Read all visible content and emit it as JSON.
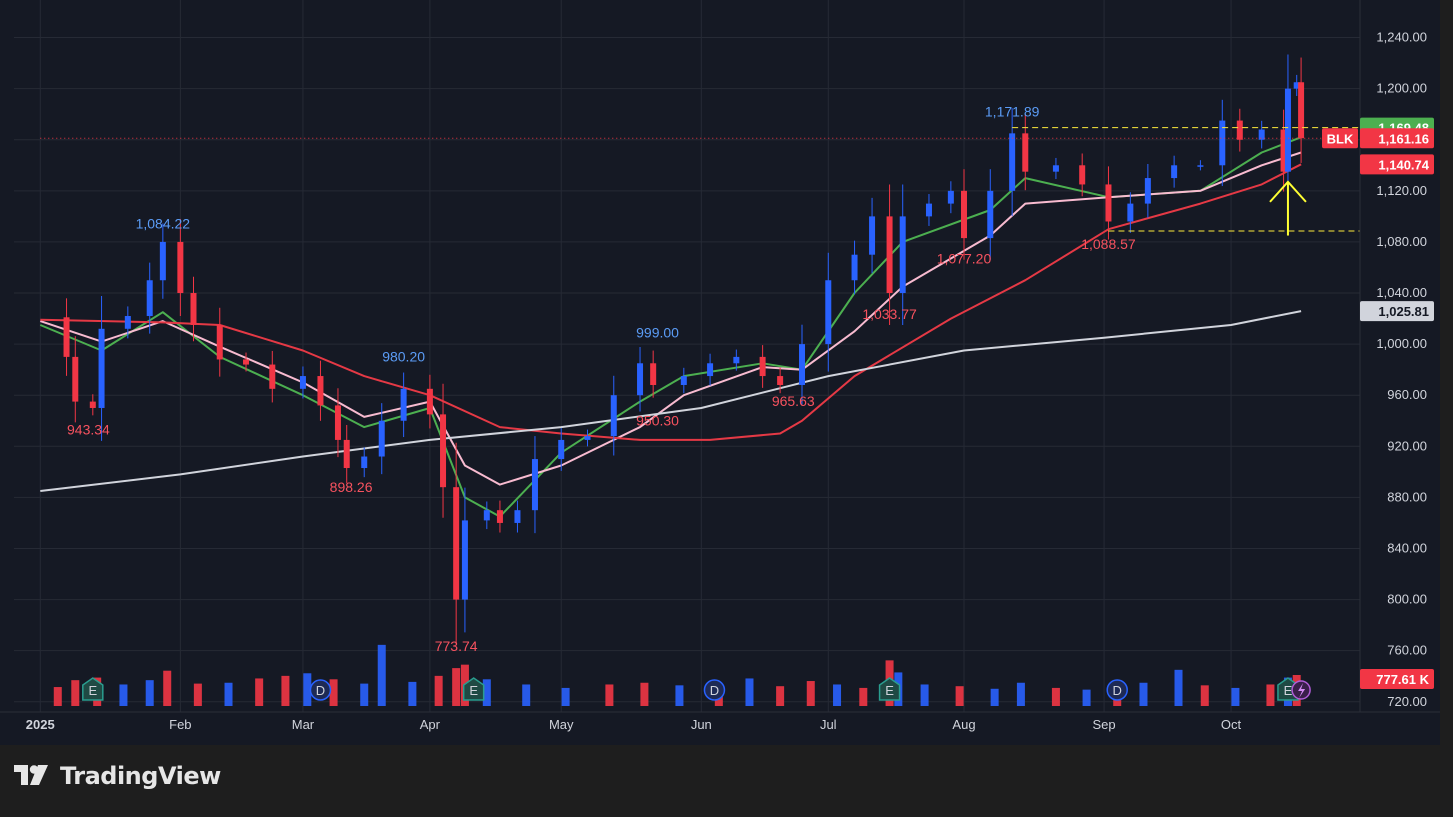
{
  "brand": {
    "name": "TradingView"
  },
  "colors": {
    "background": "#151924",
    "grid": "#262a35",
    "up": "#2962ff",
    "down": "#f23645",
    "ema_fast": "#4caf50",
    "ema_mid": "#f8bbd0",
    "ma_50": "#e53945",
    "ma_200": "#d1d4dc",
    "level_line": "#ffeb3b",
    "arrow": "#ffff33",
    "up_label": "#5b9cf6",
    "down_label": "#f7525f"
  },
  "chart_data": {
    "type": "candlestick",
    "symbol": "BLK",
    "x_labels": [
      {
        "label": "2025",
        "date": "2025-01-02"
      },
      {
        "label": "Feb",
        "date": "2025-02-03"
      },
      {
        "label": "Mar",
        "date": "2025-03-03"
      },
      {
        "label": "Apr",
        "date": "2025-04-01"
      },
      {
        "label": "May",
        "date": "2025-05-01"
      },
      {
        "label": "Jun",
        "date": "2025-06-02"
      },
      {
        "label": "Jul",
        "date": "2025-07-01"
      },
      {
        "label": "Aug",
        "date": "2025-08-01"
      },
      {
        "label": "Sep",
        "date": "2025-09-02"
      },
      {
        "label": "Oct",
        "date": "2025-10-01"
      }
    ],
    "y_ticks": [
      "720.00",
      "760.00",
      "800.00",
      "840.00",
      "880.00",
      "920.00",
      "960.00",
      "1,000.00",
      "1,040.00",
      "1,080.00",
      "1,120.00",
      "1,160.00",
      "1,200.00",
      "1,240.00"
    ],
    "y_range": [
      712,
      1260
    ],
    "grid": true,
    "price_points": [
      {
        "date": "2025-01-02",
        "close": 1021
      },
      {
        "date": "2025-01-08",
        "close": 990
      },
      {
        "date": "2025-01-10",
        "close": 955
      },
      {
        "date": "2025-01-14",
        "close": 950
      },
      {
        "date": "2025-01-16",
        "close": 1012
      },
      {
        "date": "2025-01-22",
        "close": 1022
      },
      {
        "date": "2025-01-27",
        "close": 1050
      },
      {
        "date": "2025-01-30",
        "close": 1080
      },
      {
        "date": "2025-02-03",
        "close": 1040
      },
      {
        "date": "2025-02-06",
        "close": 1015
      },
      {
        "date": "2025-02-12",
        "close": 988
      },
      {
        "date": "2025-02-18",
        "close": 984
      },
      {
        "date": "2025-02-24",
        "close": 965
      },
      {
        "date": "2025-03-03",
        "close": 975
      },
      {
        "date": "2025-03-07",
        "close": 952
      },
      {
        "date": "2025-03-11",
        "close": 925
      },
      {
        "date": "2025-03-13",
        "close": 903
      },
      {
        "date": "2025-03-17",
        "close": 912
      },
      {
        "date": "2025-03-21",
        "close": 940
      },
      {
        "date": "2025-03-26",
        "close": 965
      },
      {
        "date": "2025-04-01",
        "close": 945
      },
      {
        "date": "2025-04-04",
        "close": 888
      },
      {
        "date": "2025-04-07",
        "close": 800
      },
      {
        "date": "2025-04-09",
        "close": 862
      },
      {
        "date": "2025-04-14",
        "close": 870
      },
      {
        "date": "2025-04-17",
        "close": 860
      },
      {
        "date": "2025-04-21",
        "close": 870
      },
      {
        "date": "2025-04-25",
        "close": 910
      },
      {
        "date": "2025-05-01",
        "close": 925
      },
      {
        "date": "2025-05-07",
        "close": 928
      },
      {
        "date": "2025-05-13",
        "close": 960
      },
      {
        "date": "2025-05-19",
        "close": 985
      },
      {
        "date": "2025-05-22",
        "close": 968
      },
      {
        "date": "2025-05-29",
        "close": 975
      },
      {
        "date": "2025-06-04",
        "close": 985
      },
      {
        "date": "2025-06-10",
        "close": 990
      },
      {
        "date": "2025-06-16",
        "close": 975
      },
      {
        "date": "2025-06-20",
        "close": 968
      },
      {
        "date": "2025-06-25",
        "close": 1000
      },
      {
        "date": "2025-07-01",
        "close": 1050
      },
      {
        "date": "2025-07-07",
        "close": 1070
      },
      {
        "date": "2025-07-11",
        "close": 1100
      },
      {
        "date": "2025-07-15",
        "close": 1040
      },
      {
        "date": "2025-07-18",
        "close": 1100
      },
      {
        "date": "2025-07-24",
        "close": 1110
      },
      {
        "date": "2025-07-29",
        "close": 1120
      },
      {
        "date": "2025-08-01",
        "close": 1083
      },
      {
        "date": "2025-08-07",
        "close": 1120
      },
      {
        "date": "2025-08-12",
        "close": 1165
      },
      {
        "date": "2025-08-15",
        "close": 1135
      },
      {
        "date": "2025-08-22",
        "close": 1140
      },
      {
        "date": "2025-08-28",
        "close": 1125
      },
      {
        "date": "2025-09-03",
        "close": 1096
      },
      {
        "date": "2025-09-08",
        "close": 1110
      },
      {
        "date": "2025-09-12",
        "close": 1130
      },
      {
        "date": "2025-09-18",
        "close": 1140
      },
      {
        "date": "2025-09-24",
        "close": 1140
      },
      {
        "date": "2025-09-29",
        "close": 1175
      },
      {
        "date": "2025-10-03",
        "close": 1160
      },
      {
        "date": "2025-10-08",
        "close": 1168
      },
      {
        "date": "2025-10-13",
        "close": 1135
      },
      {
        "date": "2025-10-14",
        "close": 1200
      },
      {
        "date": "2025-10-16",
        "close": 1205
      },
      {
        "date": "2025-10-17",
        "close": 1161.16
      }
    ],
    "moving_averages": [
      {
        "id": "ema_fast",
        "color": "#4caf50",
        "points": [
          [
            "2025-01-02",
            1015
          ],
          [
            "2025-01-16",
            995
          ],
          [
            "2025-01-30",
            1025
          ],
          [
            "2025-02-12",
            990
          ],
          [
            "2025-03-03",
            960
          ],
          [
            "2025-03-17",
            935
          ],
          [
            "2025-04-01",
            950
          ],
          [
            "2025-04-09",
            880
          ],
          [
            "2025-04-17",
            865
          ],
          [
            "2025-05-01",
            915
          ],
          [
            "2025-05-19",
            955
          ],
          [
            "2025-05-29",
            975
          ],
          [
            "2025-06-16",
            985
          ],
          [
            "2025-06-25",
            980
          ],
          [
            "2025-07-07",
            1040
          ],
          [
            "2025-07-18",
            1080
          ],
          [
            "2025-08-07",
            1105
          ],
          [
            "2025-08-15",
            1130
          ],
          [
            "2025-09-03",
            1115
          ],
          [
            "2025-09-24",
            1120
          ],
          [
            "2025-10-08",
            1150
          ],
          [
            "2025-10-17",
            1162
          ]
        ]
      },
      {
        "id": "ema_mid",
        "color": "#f8bbd0",
        "points": [
          [
            "2025-01-02",
            1018
          ],
          [
            "2025-01-16",
            1002
          ],
          [
            "2025-01-30",
            1018
          ],
          [
            "2025-02-12",
            998
          ],
          [
            "2025-03-03",
            970
          ],
          [
            "2025-03-17",
            943
          ],
          [
            "2025-04-01",
            955
          ],
          [
            "2025-04-09",
            905
          ],
          [
            "2025-04-17",
            890
          ],
          [
            "2025-05-01",
            905
          ],
          [
            "2025-05-19",
            935
          ],
          [
            "2025-05-29",
            960
          ],
          [
            "2025-06-16",
            982
          ],
          [
            "2025-06-25",
            980
          ],
          [
            "2025-07-07",
            1010
          ],
          [
            "2025-07-18",
            1045
          ],
          [
            "2025-08-07",
            1085
          ],
          [
            "2025-08-15",
            1110
          ],
          [
            "2025-09-03",
            1115
          ],
          [
            "2025-09-24",
            1120
          ],
          [
            "2025-10-08",
            1140
          ],
          [
            "2025-10-17",
            1150
          ]
        ]
      },
      {
        "id": "ma_50",
        "color": "#e53945",
        "points": [
          [
            "2025-01-02",
            1019
          ],
          [
            "2025-01-30",
            1017
          ],
          [
            "2025-02-12",
            1015
          ],
          [
            "2025-03-03",
            995
          ],
          [
            "2025-03-17",
            975
          ],
          [
            "2025-04-01",
            960
          ],
          [
            "2025-04-17",
            935
          ],
          [
            "2025-05-01",
            930
          ],
          [
            "2025-05-19",
            925
          ],
          [
            "2025-06-04",
            925
          ],
          [
            "2025-06-20",
            930
          ],
          [
            "2025-06-25",
            940
          ],
          [
            "2025-07-07",
            975
          ],
          [
            "2025-07-29",
            1020
          ],
          [
            "2025-08-15",
            1050
          ],
          [
            "2025-09-03",
            1090
          ],
          [
            "2025-09-24",
            1110
          ],
          [
            "2025-10-08",
            1125
          ],
          [
            "2025-10-17",
            1140.74
          ]
        ]
      },
      {
        "id": "ma_200",
        "color": "#d1d4dc",
        "points": [
          [
            "2025-01-02",
            885
          ],
          [
            "2025-02-03",
            898
          ],
          [
            "2025-03-03",
            912
          ],
          [
            "2025-04-01",
            925
          ],
          [
            "2025-05-01",
            935
          ],
          [
            "2025-06-02",
            950
          ],
          [
            "2025-07-01",
            975
          ],
          [
            "2025-08-01",
            995
          ],
          [
            "2025-09-02",
            1005
          ],
          [
            "2025-10-01",
            1015
          ],
          [
            "2025-10-17",
            1025.81
          ]
        ]
      }
    ],
    "volume": {
      "range": [
        0,
        7200000
      ],
      "bars": [
        {
          "date": "2025-01-06",
          "value": 2200000,
          "dir": "down"
        },
        {
          "date": "2025-01-10",
          "value": 3000000,
          "dir": "down"
        },
        {
          "date": "2025-01-15",
          "value": 3300000,
          "dir": "down"
        },
        {
          "date": "2025-01-21",
          "value": 2500000,
          "dir": "up"
        },
        {
          "date": "2025-01-27",
          "value": 3000000,
          "dir": "up"
        },
        {
          "date": "2025-01-31",
          "value": 4100000,
          "dir": "down"
        },
        {
          "date": "2025-02-07",
          "value": 2600000,
          "dir": "down"
        },
        {
          "date": "2025-02-14",
          "value": 2700000,
          "dir": "up"
        },
        {
          "date": "2025-02-21",
          "value": 3200000,
          "dir": "down"
        },
        {
          "date": "2025-02-27",
          "value": 3500000,
          "dir": "down"
        },
        {
          "date": "2025-03-04",
          "value": 3800000,
          "dir": "up"
        },
        {
          "date": "2025-03-10",
          "value": 3100000,
          "dir": "down"
        },
        {
          "date": "2025-03-17",
          "value": 2600000,
          "dir": "up"
        },
        {
          "date": "2025-03-21",
          "value": 7100000,
          "dir": "up"
        },
        {
          "date": "2025-03-28",
          "value": 2800000,
          "dir": "up"
        },
        {
          "date": "2025-04-03",
          "value": 3500000,
          "dir": "down"
        },
        {
          "date": "2025-04-07",
          "value": 4400000,
          "dir": "down"
        },
        {
          "date": "2025-04-09",
          "value": 4800000,
          "dir": "down"
        },
        {
          "date": "2025-04-14",
          "value": 3100000,
          "dir": "up"
        },
        {
          "date": "2025-04-23",
          "value": 2500000,
          "dir": "up"
        },
        {
          "date": "2025-05-02",
          "value": 2100000,
          "dir": "up"
        },
        {
          "date": "2025-05-12",
          "value": 2500000,
          "dir": "down"
        },
        {
          "date": "2025-05-20",
          "value": 2700000,
          "dir": "down"
        },
        {
          "date": "2025-05-28",
          "value": 2400000,
          "dir": "up"
        },
        {
          "date": "2025-06-06",
          "value": 2600000,
          "dir": "down"
        },
        {
          "date": "2025-06-13",
          "value": 3200000,
          "dir": "up"
        },
        {
          "date": "2025-06-20",
          "value": 2300000,
          "dir": "down"
        },
        {
          "date": "2025-06-27",
          "value": 2900000,
          "dir": "down"
        },
        {
          "date": "2025-07-03",
          "value": 2500000,
          "dir": "up"
        },
        {
          "date": "2025-07-09",
          "value": 2100000,
          "dir": "down"
        },
        {
          "date": "2025-07-15",
          "value": 5300000,
          "dir": "down"
        },
        {
          "date": "2025-07-17",
          "value": 3900000,
          "dir": "up"
        },
        {
          "date": "2025-07-23",
          "value": 2500000,
          "dir": "up"
        },
        {
          "date": "2025-07-31",
          "value": 2300000,
          "dir": "down"
        },
        {
          "date": "2025-08-08",
          "value": 2000000,
          "dir": "up"
        },
        {
          "date": "2025-08-14",
          "value": 2700000,
          "dir": "up"
        },
        {
          "date": "2025-08-22",
          "value": 2100000,
          "dir": "down"
        },
        {
          "date": "2025-08-29",
          "value": 1900000,
          "dir": "up"
        },
        {
          "date": "2025-09-05",
          "value": 2300000,
          "dir": "down"
        },
        {
          "date": "2025-09-11",
          "value": 2700000,
          "dir": "up"
        },
        {
          "date": "2025-09-19",
          "value": 4200000,
          "dir": "up"
        },
        {
          "date": "2025-09-25",
          "value": 2400000,
          "dir": "down"
        },
        {
          "date": "2025-10-02",
          "value": 2100000,
          "dir": "up"
        },
        {
          "date": "2025-10-10",
          "value": 2500000,
          "dir": "down"
        },
        {
          "date": "2025-10-14",
          "value": 3300000,
          "dir": "up"
        },
        {
          "date": "2025-10-16",
          "value": 3600000,
          "dir": "down"
        }
      ],
      "current_label": "777.61 K"
    },
    "annotations": [
      {
        "text": "1,084.22",
        "date": "2025-01-30",
        "price": 1084.22,
        "type": "high"
      },
      {
        "text": "943.34",
        "date": "2025-01-13",
        "price": 943.34,
        "type": "low"
      },
      {
        "text": "898.26",
        "date": "2025-03-14",
        "price": 898.26,
        "type": "low"
      },
      {
        "text": "980.20",
        "date": "2025-03-26",
        "price": 980.2,
        "type": "high"
      },
      {
        "text": "773.74",
        "date": "2025-04-07",
        "price": 773.74,
        "type": "low"
      },
      {
        "text": "999.00",
        "date": "2025-05-23",
        "price": 999.0,
        "type": "high"
      },
      {
        "text": "950.30",
        "date": "2025-05-23",
        "price": 950.3,
        "type": "low"
      },
      {
        "text": "965.63",
        "date": "2025-06-23",
        "price": 965.63,
        "type": "low"
      },
      {
        "text": "1,033.77",
        "date": "2025-07-15",
        "price": 1033.77,
        "type": "low"
      },
      {
        "text": "1,077.20",
        "date": "2025-08-01",
        "price": 1077.2,
        "type": "low"
      },
      {
        "text": "1,171.89",
        "date": "2025-08-12",
        "price": 1171.89,
        "type": "high"
      },
      {
        "text": "1,088.57",
        "date": "2025-09-03",
        "price": 1088.57,
        "type": "low"
      }
    ],
    "horizontal_levels": [
      {
        "price": 1169.48,
        "style": "dashed",
        "color": "#ffeb3b",
        "from_date": "2025-08-12"
      },
      {
        "price": 1088.57,
        "style": "dashed",
        "color": "#ffeb3b",
        "from_date": "2025-09-03"
      },
      {
        "price": 1161.16,
        "style": "dotted",
        "color": "#f23645",
        "from_date": "2025-01-02"
      }
    ],
    "price_tags": [
      {
        "text": "1,169.48",
        "price": 1169.48,
        "color": "#4caf50"
      },
      {
        "text": "1,161.16",
        "price": 1161.16,
        "color": "#f23645",
        "symbol": "BLK"
      },
      {
        "text": "1,140.74",
        "price": 1140.74,
        "color": "#f23645"
      },
      {
        "text": "1,025.81",
        "price": 1025.81,
        "color": "#d1d4dc"
      }
    ],
    "events": [
      {
        "type": "E",
        "date": "2025-01-14"
      },
      {
        "type": "D",
        "date": "2025-03-07"
      },
      {
        "type": "E",
        "date": "2025-04-11"
      },
      {
        "type": "D",
        "date": "2025-06-05"
      },
      {
        "type": "E",
        "date": "2025-07-15"
      },
      {
        "type": "D",
        "date": "2025-09-05"
      },
      {
        "type": "E",
        "date": "2025-10-14"
      }
    ],
    "arrow": {
      "date": "2025-10-14",
      "from_price": 1085,
      "to_price": 1127,
      "color": "#ffff33"
    }
  }
}
